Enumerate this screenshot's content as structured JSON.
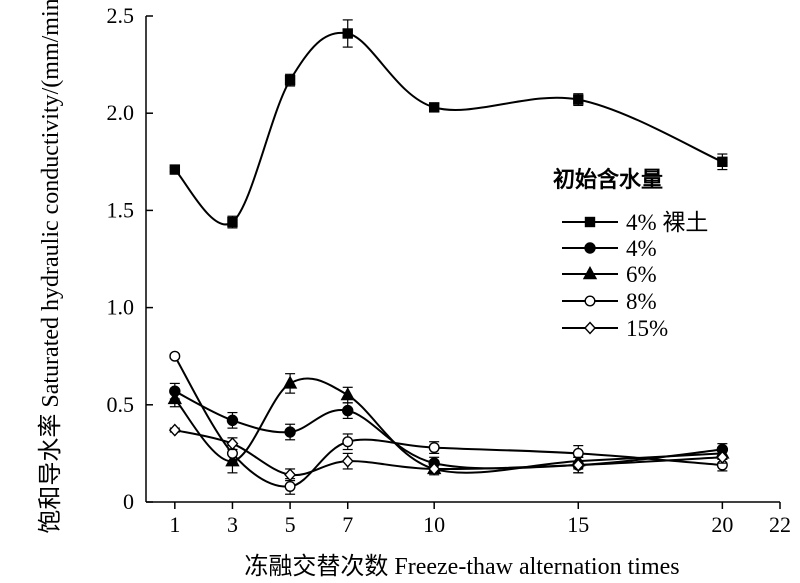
{
  "chart_data": {
    "type": "line",
    "xlabel": "冻融交替次数 Freeze-thaw alternation times",
    "ylabel": "饱和导水率 Saturated hydraulic conductivity/(mm/min)",
    "xlim": [
      0,
      22
    ],
    "ylim": [
      0,
      2.5
    ],
    "x_ticks": [
      1,
      3,
      5,
      7,
      10,
      15,
      20,
      22
    ],
    "y_ticks": [
      0,
      0.5,
      1.0,
      1.5,
      2.0,
      2.5
    ],
    "y_tick_labels": [
      "0",
      "0.5",
      "1.0",
      "1.5",
      "2.0",
      "2.5"
    ],
    "grid": false,
    "legend_title": "初始含水量",
    "legend_position": "right",
    "x": [
      1,
      3,
      5,
      7,
      10,
      15,
      20
    ],
    "series": [
      {
        "name": "4% 裸土",
        "marker": "square-filled",
        "values": [
          1.71,
          1.44,
          2.17,
          2.41,
          2.03,
          2.07,
          1.75
        ],
        "errors": [
          0.01,
          0.03,
          0.03,
          0.07,
          0.02,
          0.03,
          0.04
        ]
      },
      {
        "name": "4%",
        "marker": "circle-filled",
        "values": [
          0.57,
          0.42,
          0.36,
          0.47,
          0.2,
          0.19,
          0.27
        ],
        "errors": [
          0.04,
          0.04,
          0.04,
          0.04,
          0.03,
          0.04,
          0.03
        ]
      },
      {
        "name": "6%",
        "marker": "triangle-filled",
        "values": [
          0.53,
          0.21,
          0.61,
          0.55,
          0.17,
          0.21,
          0.25
        ],
        "errors": [
          0.04,
          0.06,
          0.05,
          0.04,
          0.03,
          0.04,
          0.03
        ]
      },
      {
        "name": "8%",
        "marker": "circle-open",
        "values": [
          0.75,
          0.25,
          0.08,
          0.31,
          0.28,
          0.25,
          0.19
        ],
        "errors": [
          0.01,
          0.04,
          0.04,
          0.04,
          0.03,
          0.04,
          0.03
        ]
      },
      {
        "name": "15%",
        "marker": "diamond-open",
        "values": [
          0.37,
          0.3,
          0.14,
          0.21,
          0.17,
          0.19,
          0.23
        ],
        "errors": [
          0.01,
          0.03,
          0.03,
          0.04,
          0.02,
          0.04,
          0.03
        ]
      }
    ]
  }
}
